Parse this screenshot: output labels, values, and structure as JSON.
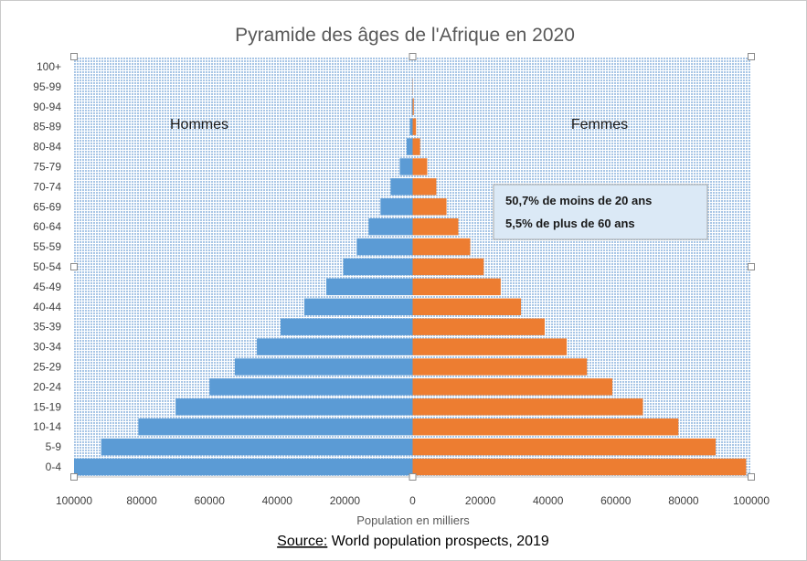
{
  "chart_data": {
    "type": "bar",
    "orientation": "horizontal",
    "layout": "population-pyramid",
    "title": "Pyramide des âges de l'Afrique en 2020",
    "xlabel": "Population en milliers",
    "ylabel": "",
    "categories": [
      "0-4",
      "5-9",
      "10-14",
      "15-19",
      "20-24",
      "25-29",
      "30-34",
      "35-39",
      "40-44",
      "45-49",
      "50-54",
      "55-59",
      "60-64",
      "65-69",
      "70-74",
      "75-79",
      "80-84",
      "85-89",
      "90-94",
      "95-99",
      "100+"
    ],
    "series": [
      {
        "name": "Hommes",
        "color": "#5b9bd5",
        "values": [
          100000,
          92000,
          81000,
          70000,
          60000,
          52500,
          46000,
          39000,
          32000,
          25500,
          20500,
          16500,
          13000,
          9500,
          6500,
          3800,
          1800,
          800,
          250,
          50,
          5
        ]
      },
      {
        "name": "Femmes",
        "color": "#ed7d31",
        "values": [
          98500,
          89500,
          78500,
          68000,
          59000,
          51500,
          45500,
          39000,
          32000,
          26000,
          21000,
          17000,
          13500,
          10000,
          7000,
          4300,
          2200,
          1000,
          350,
          80,
          10
        ]
      }
    ],
    "xlim": [
      -100000,
      100000
    ],
    "xticks": [
      -100000,
      -80000,
      -60000,
      -40000,
      -20000,
      0,
      20000,
      40000,
      60000,
      80000,
      100000
    ],
    "xtick_labels": [
      "100000",
      "80000",
      "60000",
      "40000",
      "20000",
      "0",
      "20000",
      "40000",
      "60000",
      "80000",
      "100000"
    ],
    "grid": false,
    "plot_background": "#dbe9f6",
    "annotations": [
      "50,7% de moins de 20 ans",
      "5,5% de plus de 60 ans"
    ],
    "source_prefix": "Source:",
    "source_text": " World population prospects, 2019"
  }
}
